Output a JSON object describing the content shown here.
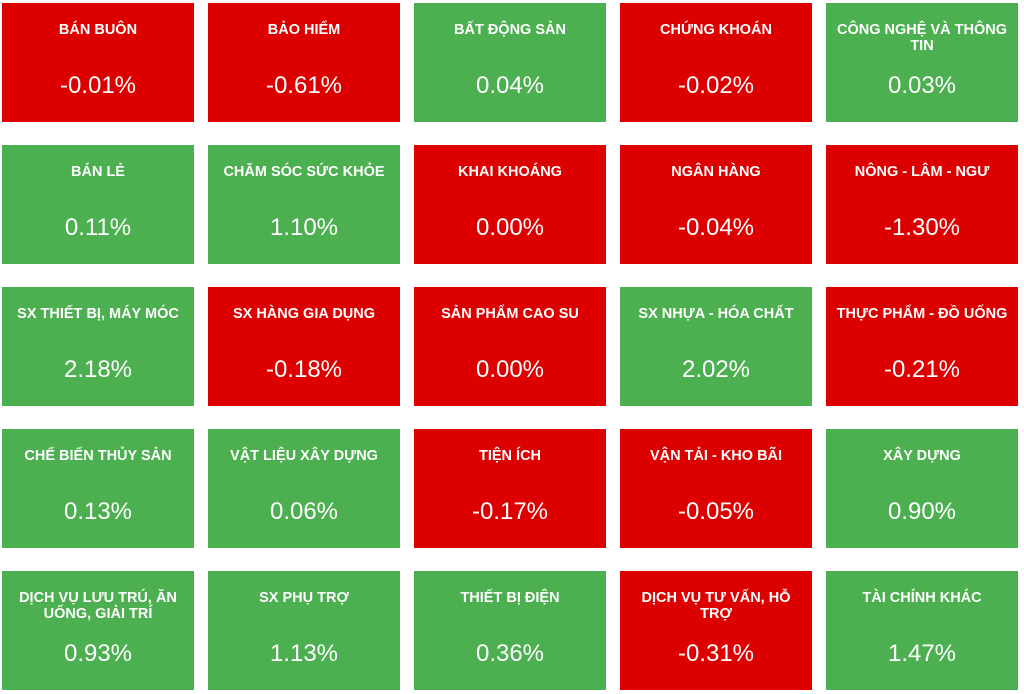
{
  "colors": {
    "negative": "#dc0000",
    "positive": "#4caf50",
    "text": "#ffffff"
  },
  "sectors": [
    {
      "name": "BÁN BUÔN",
      "change": "-0.01%",
      "trend": "down"
    },
    {
      "name": "BẢO HIỂM",
      "change": "-0.61%",
      "trend": "down"
    },
    {
      "name": "BẤT ĐỘNG SẢN",
      "change": "0.04%",
      "trend": "up"
    },
    {
      "name": "CHỨNG KHOÁN",
      "change": "-0.02%",
      "trend": "down"
    },
    {
      "name": "CÔNG NGHỆ VÀ THÔNG TIN",
      "change": "0.03%",
      "trend": "up"
    },
    {
      "name": "BÁN LẺ",
      "change": "0.11%",
      "trend": "up"
    },
    {
      "name": "CHĂM SÓC SỨC KHỎE",
      "change": "1.10%",
      "trend": "up"
    },
    {
      "name": "KHAI KHOÁNG",
      "change": "0.00%",
      "trend": "down"
    },
    {
      "name": "NGÂN HÀNG",
      "change": "-0.04%",
      "trend": "down"
    },
    {
      "name": "NÔNG - LÂM - NGƯ",
      "change": "-1.30%",
      "trend": "down"
    },
    {
      "name": "SX THIẾT BỊ, MÁY MÓC",
      "change": "2.18%",
      "trend": "up"
    },
    {
      "name": "SX HÀNG GIA DỤNG",
      "change": "-0.18%",
      "trend": "down"
    },
    {
      "name": "SẢN PHẨM CAO SU",
      "change": "0.00%",
      "trend": "down"
    },
    {
      "name": "SX NHỰA - HÓA CHẤT",
      "change": "2.02%",
      "trend": "up"
    },
    {
      "name": "THỰC PHẨM - ĐỒ UỐNG",
      "change": "-0.21%",
      "trend": "down"
    },
    {
      "name": "CHẾ BIẾN THỦY SẢN",
      "change": "0.13%",
      "trend": "up"
    },
    {
      "name": "VẬT LIỆU XÂY DỰNG",
      "change": "0.06%",
      "trend": "up"
    },
    {
      "name": "TIỆN ÍCH",
      "change": "-0.17%",
      "trend": "down"
    },
    {
      "name": "VẬN TẢI - KHO BÃI",
      "change": "-0.05%",
      "trend": "down"
    },
    {
      "name": "XÂY DỰNG",
      "change": "0.90%",
      "trend": "up"
    },
    {
      "name": "DỊCH VỤ LƯU TRÚ, ĂN UỐNG, GIẢI TRÍ",
      "change": "0.93%",
      "trend": "up"
    },
    {
      "name": "SX PHỤ TRỢ",
      "change": "1.13%",
      "trend": "up"
    },
    {
      "name": "THIẾT BỊ ĐIỆN",
      "change": "0.36%",
      "trend": "up"
    },
    {
      "name": "DỊCH VỤ TƯ VẤN, HỖ TRỢ",
      "change": "-0.31%",
      "trend": "down"
    },
    {
      "name": "TÀI CHÍNH KHÁC",
      "change": "1.47%",
      "trend": "up"
    }
  ]
}
